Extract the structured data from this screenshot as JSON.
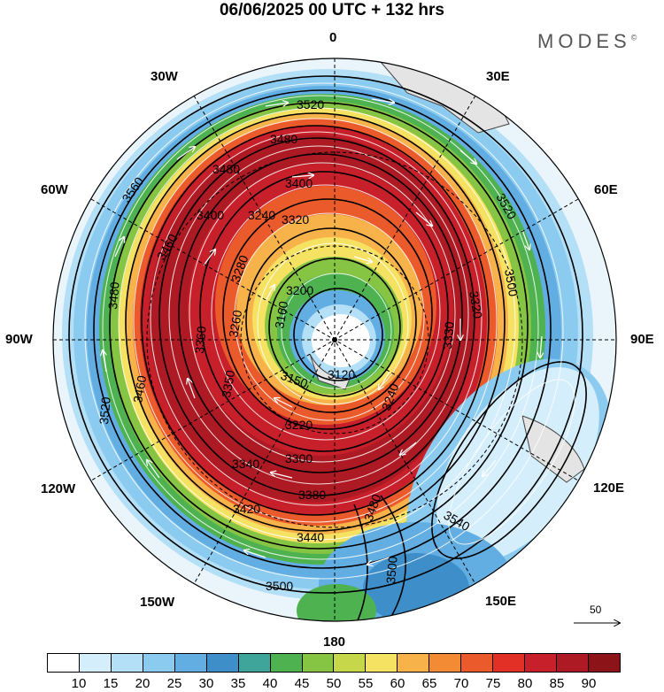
{
  "title": "06/06/2025  00 UTC  + 132 hrs",
  "brand": "MODES",
  "brand_mark": "©",
  "longitude_labels": {
    "n": "0",
    "ne": "30E",
    "e1": "60E",
    "e": "90E",
    "se1": "120E",
    "se": "150E",
    "s": "180",
    "sw": "150W",
    "sw1": "120W",
    "w": "90W",
    "nw1": "60W",
    "nw": "30W"
  },
  "contour_labels": [
    "3520",
    "3480",
    "3480",
    "3400",
    "3320",
    "3240",
    "3200",
    "3160",
    "3150",
    "3260",
    "3280",
    "3360",
    "3400",
    "3460",
    "3480",
    "3520",
    "3560",
    "3500",
    "3520",
    "3540",
    "3500",
    "3480",
    "3440",
    "3420",
    "3380",
    "3340",
    "3300",
    "3220",
    "3240",
    "3330",
    "3320",
    "3460",
    "3500",
    "3350",
    "3120"
  ],
  "reference_vector": {
    "label": "50"
  },
  "colorbar": {
    "colors": [
      "#ffffff",
      "#d4eefb",
      "#b3dff7",
      "#8ccbf0",
      "#62aee2",
      "#3d8ec9",
      "#3fa59a",
      "#4db24f",
      "#86c444",
      "#c6d84a",
      "#f6e262",
      "#f7b24a",
      "#f38b35",
      "#ea5a2a",
      "#e23026",
      "#c8202a",
      "#ae1a23",
      "#8c1419"
    ],
    "labels": [
      "10",
      "15",
      "20",
      "25",
      "30",
      "35",
      "40",
      "45",
      "50",
      "55",
      "60",
      "65",
      "70",
      "75",
      "80",
      "85",
      "90"
    ]
  }
}
